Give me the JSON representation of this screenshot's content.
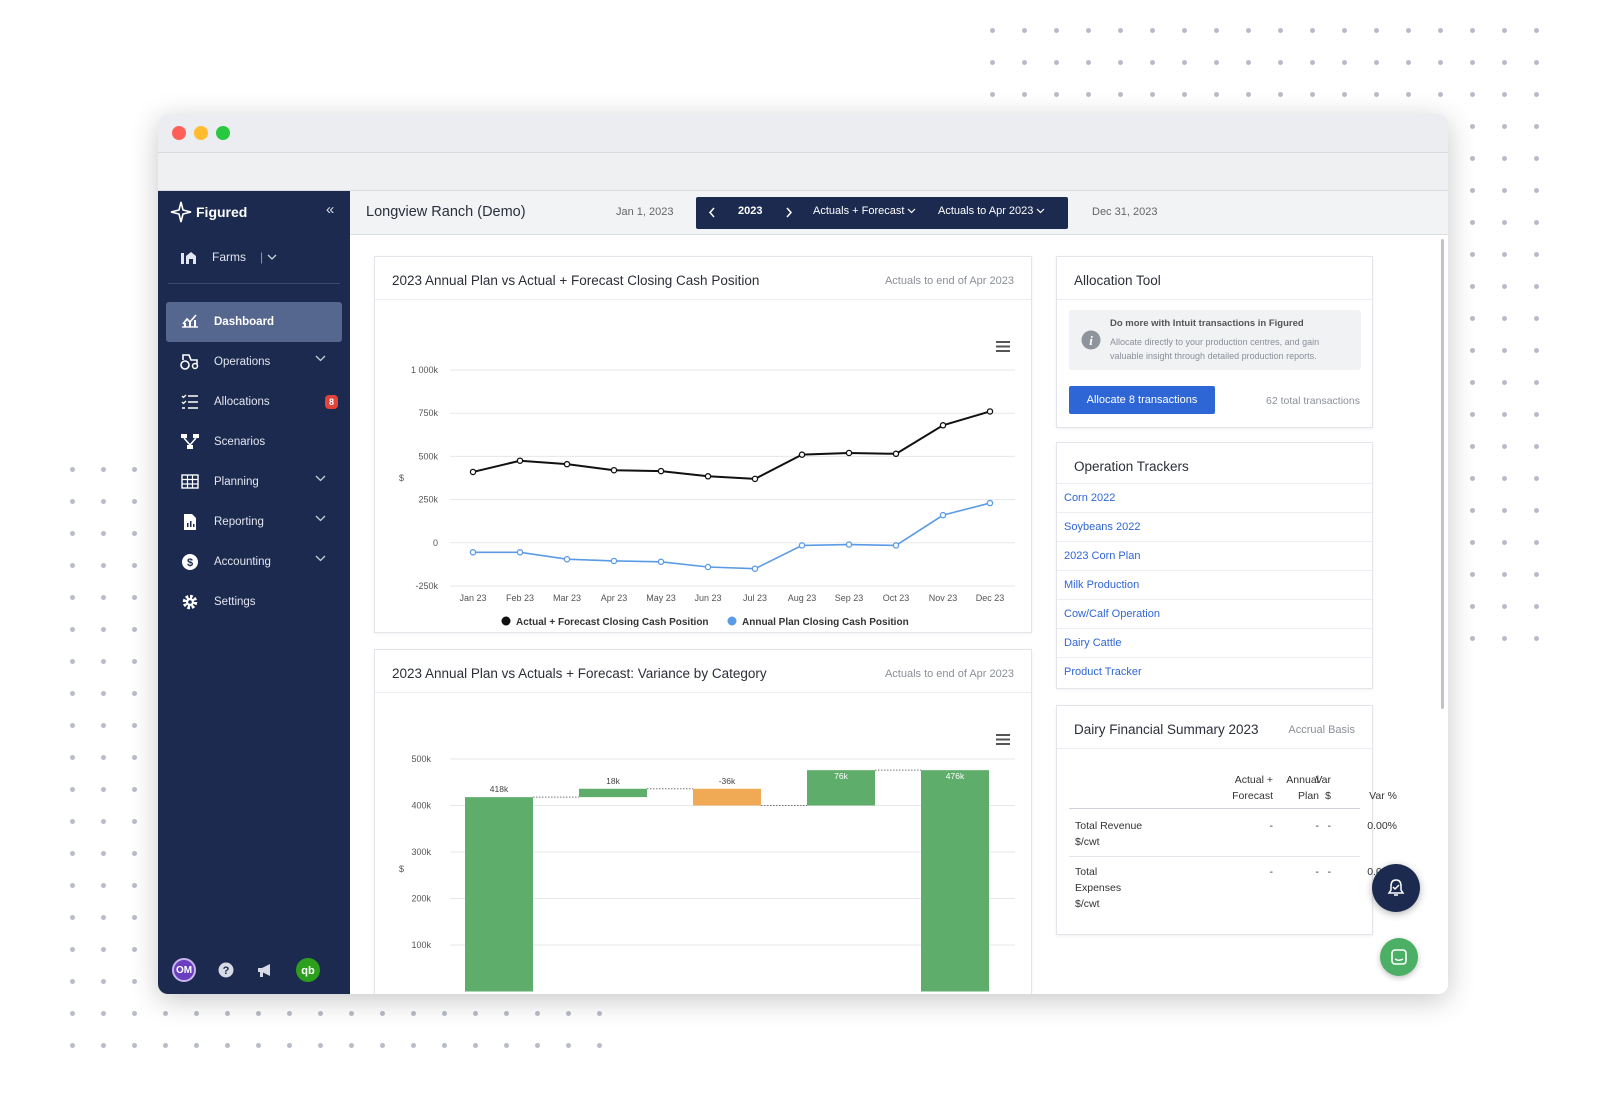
{
  "app": {
    "brand": "Figured",
    "farm_selector": "Farms",
    "farm_name": "Longview Ranch (Demo)",
    "date_start": "Jan 1, 2023",
    "date_end": "Dec 31, 2023",
    "year": "2023",
    "view_mode": "Actuals + Forecast",
    "actuals_to": "Actuals to Apr 2023",
    "accent_color": "#1b2a4e",
    "link_color": "#2f66d6"
  },
  "sidebar": {
    "items": [
      {
        "label": "Dashboard",
        "icon": "dashboard-icon",
        "active": true
      },
      {
        "label": "Operations",
        "icon": "tractor-icon",
        "has_chevron": true
      },
      {
        "label": "Allocations",
        "icon": "list-check-icon",
        "badge": "8"
      },
      {
        "label": "Scenarios",
        "icon": "branch-icon"
      },
      {
        "label": "Planning",
        "icon": "grid-icon",
        "has_chevron": true
      },
      {
        "label": "Reporting",
        "icon": "report-icon",
        "has_chevron": true
      },
      {
        "label": "Accounting",
        "icon": "dollar-icon",
        "has_chevron": true
      },
      {
        "label": "Settings",
        "icon": "gear-icon"
      }
    ],
    "user_initials": "OM",
    "footer_icons": [
      "help-icon",
      "megaphone-icon",
      "quickbooks-icon"
    ]
  },
  "cash_card": {
    "title": "2023 Annual Plan vs Actual + Forecast Closing Cash Position",
    "subtitle": "Actuals to end of Apr 2023"
  },
  "variance_card": {
    "title": "2023 Annual Plan vs Actuals + Forecast: Variance by Category",
    "subtitle": "Actuals to end of Apr 2023"
  },
  "allocation": {
    "title": "Allocation Tool",
    "info_title": "Do more with Intuit transactions in Figured",
    "info_body": "Allocate directly to your production centres, and gain valuable insight through detailed production reports.",
    "button": "Allocate 8 transactions",
    "total": "62 total transactions"
  },
  "trackers": {
    "title": "Operation Trackers",
    "items": [
      "Corn 2022",
      "Soybeans 2022",
      "2023 Corn Plan",
      "Milk Production",
      "Cow/Calf Operation",
      "Dairy Cattle",
      "Product Tracker"
    ]
  },
  "dairy": {
    "title": "Dairy Financial Summary 2023",
    "basis": "Accrual Basis",
    "headers": [
      "Actual +\nForecast",
      "Annual\nPlan",
      "Var\n$",
      "Var %"
    ],
    "rows": [
      {
        "label": "Total Revenue\n$/cwt",
        "actual": "-",
        "plan": "-",
        "var": "-",
        "var_pct": "0.00%"
      },
      {
        "label": "Total\nExpenses\n$/cwt",
        "actual": "-",
        "plan": "-",
        "var": "-",
        "var_pct": "0.00%"
      }
    ]
  },
  "chart_data": [
    {
      "type": "line",
      "x": [
        "Jan 23",
        "Feb 23",
        "Mar 23",
        "Apr 23",
        "May 23",
        "Jun 23",
        "Jul 23",
        "Aug 23",
        "Sep 23",
        "Oct 23",
        "Nov 23",
        "Dec 23"
      ],
      "ylabel": "$",
      "ylim": [
        -250000,
        1000000
      ],
      "yticks": [
        "1 000k",
        "750k",
        "500k",
        "250k",
        "0",
        "-250k"
      ],
      "grid": true,
      "legend_position": "bottom",
      "series": [
        {
          "name": "Actual + Forecast Closing Cash Position",
          "color": "#111111",
          "values": [
            410000,
            475000,
            455000,
            420000,
            415000,
            385000,
            370000,
            510000,
            520000,
            515000,
            680000,
            760000
          ]
        },
        {
          "name": "Annual Plan Closing Cash Position",
          "color": "#5b9be6",
          "values": [
            -55000,
            -55000,
            -95000,
            -105000,
            -110000,
            -140000,
            -150000,
            -15000,
            -10000,
            -15000,
            160000,
            230000
          ]
        }
      ]
    },
    {
      "type": "bar",
      "subtype": "waterfall",
      "ylabel": "$",
      "ylim": [
        0,
        500000
      ],
      "yticks": [
        "500k",
        "400k",
        "300k",
        "200k",
        "100k"
      ],
      "bars": [
        {
          "label": "418k",
          "value": 418000,
          "color": "#5fad6b"
        },
        {
          "label": "18k",
          "value": 18000,
          "color": "#5fad6b"
        },
        {
          "label": "-36k",
          "value": -36000,
          "color": "#f0a955"
        },
        {
          "label": "76k",
          "value": 76000,
          "color": "#5fad6b"
        },
        {
          "label": "476k",
          "value": 476000,
          "color": "#5fad6b",
          "total": true
        }
      ]
    }
  ]
}
